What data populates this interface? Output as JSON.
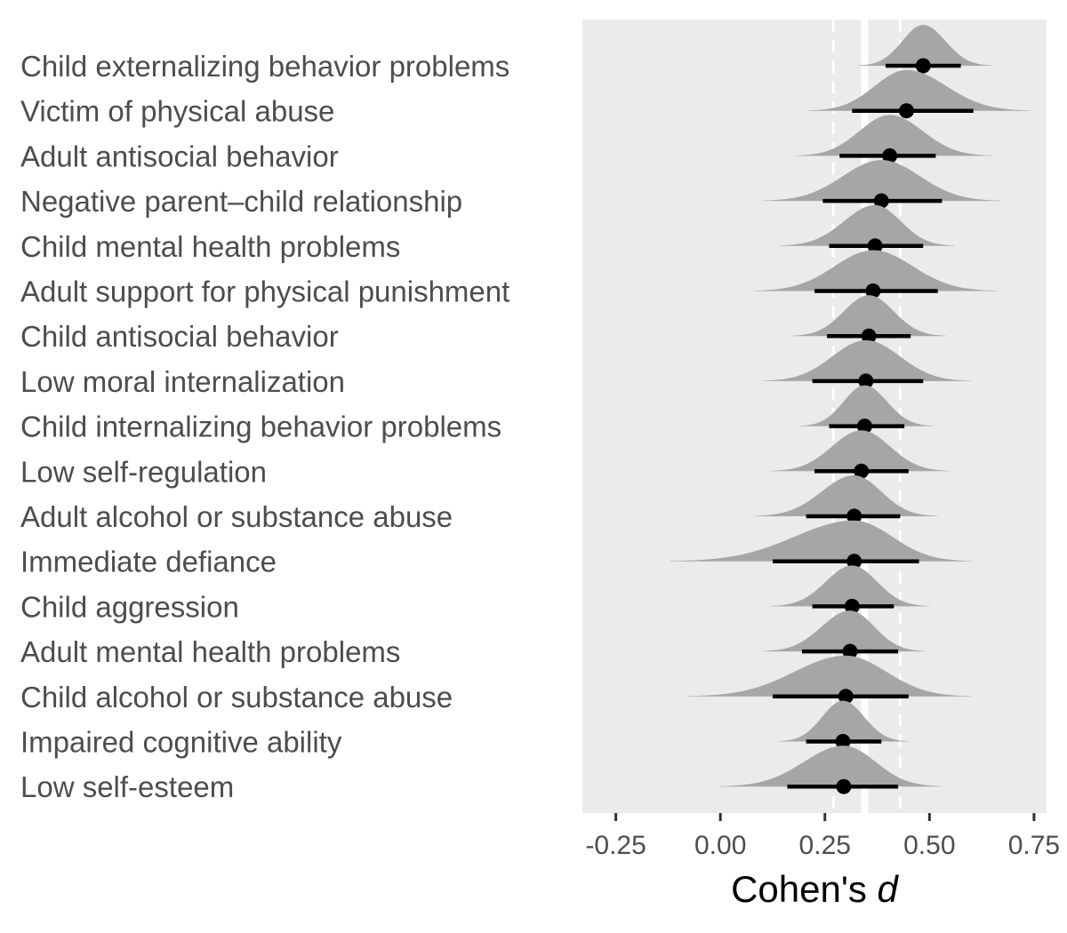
{
  "chart_data": {
    "type": "forest",
    "xlabel_main": "Cohen's ",
    "xlabel_italic": "d",
    "xlim": [
      -0.33,
      0.78
    ],
    "xticks": [
      -0.25,
      0.0,
      0.25,
      0.5,
      0.75
    ],
    "xtick_labels": [
      "-0.25",
      "0.00",
      "0.25",
      "0.50",
      "0.75"
    ],
    "reference_line": 0.345,
    "reference_interval": [
      0.27,
      0.43
    ],
    "grid": false,
    "rows": [
      {
        "label": "Child externalizing behavior problems",
        "estimate": 0.485,
        "lower": 0.395,
        "upper": 0.575,
        "dist_lower": 0.33,
        "dist_upper": 0.65
      },
      {
        "label": "Victim of physical abuse",
        "estimate": 0.445,
        "lower": 0.315,
        "upper": 0.605,
        "dist_lower": 0.21,
        "dist_upper": 0.74
      },
      {
        "label": "Adult antisocial behavior",
        "estimate": 0.405,
        "lower": 0.285,
        "upper": 0.515,
        "dist_lower": 0.18,
        "dist_upper": 0.65
      },
      {
        "label": "Negative parent–child relationship",
        "estimate": 0.385,
        "lower": 0.245,
        "upper": 0.53,
        "dist_lower": 0.1,
        "dist_upper": 0.67
      },
      {
        "label": "Child mental health problems",
        "estimate": 0.37,
        "lower": 0.26,
        "upper": 0.485,
        "dist_lower": 0.14,
        "dist_upper": 0.56
      },
      {
        "label": "Adult support for physical punishment",
        "estimate": 0.365,
        "lower": 0.225,
        "upper": 0.52,
        "dist_lower": 0.08,
        "dist_upper": 0.66
      },
      {
        "label": "Child antisocial behavior",
        "estimate": 0.355,
        "lower": 0.255,
        "upper": 0.455,
        "dist_lower": 0.17,
        "dist_upper": 0.54
      },
      {
        "label": "Low moral internalization",
        "estimate": 0.348,
        "lower": 0.22,
        "upper": 0.485,
        "dist_lower": 0.1,
        "dist_upper": 0.6
      },
      {
        "label": "Child internalizing behavior problems",
        "estimate": 0.345,
        "lower": 0.26,
        "upper": 0.44,
        "dist_lower": 0.19,
        "dist_upper": 0.51
      },
      {
        "label": "Low self-regulation",
        "estimate": 0.337,
        "lower": 0.225,
        "upper": 0.45,
        "dist_lower": 0.12,
        "dist_upper": 0.55
      },
      {
        "label": "Adult alcohol or substance abuse",
        "estimate": 0.32,
        "lower": 0.205,
        "upper": 0.43,
        "dist_lower": 0.08,
        "dist_upper": 0.52
      },
      {
        "label": "Immediate defiance",
        "estimate": 0.32,
        "lower": 0.125,
        "upper": 0.475,
        "dist_lower": -0.12,
        "dist_upper": 0.6
      },
      {
        "label": "Child aggression",
        "estimate": 0.315,
        "lower": 0.22,
        "upper": 0.415,
        "dist_lower": 0.12,
        "dist_upper": 0.5
      },
      {
        "label": "Adult mental health problems",
        "estimate": 0.31,
        "lower": 0.195,
        "upper": 0.425,
        "dist_lower": 0.1,
        "dist_upper": 0.49
      },
      {
        "label": "Child alcohol or substance abuse",
        "estimate": 0.3,
        "lower": 0.125,
        "upper": 0.45,
        "dist_lower": -0.08,
        "dist_upper": 0.6
      },
      {
        "label": "Impaired cognitive ability",
        "estimate": 0.293,
        "lower": 0.205,
        "upper": 0.385,
        "dist_lower": 0.14,
        "dist_upper": 0.45
      },
      {
        "label": "Low self-esteem",
        "estimate": 0.295,
        "lower": 0.16,
        "upper": 0.425,
        "dist_lower": 0.0,
        "dist_upper": 0.53
      }
    ],
    "colors": {
      "panel": "#ebebeb",
      "density": "#a6a6a6",
      "reference": "#ffffff",
      "point": "#000000",
      "interval": "#000000",
      "labels": "#4d4d4d"
    }
  }
}
